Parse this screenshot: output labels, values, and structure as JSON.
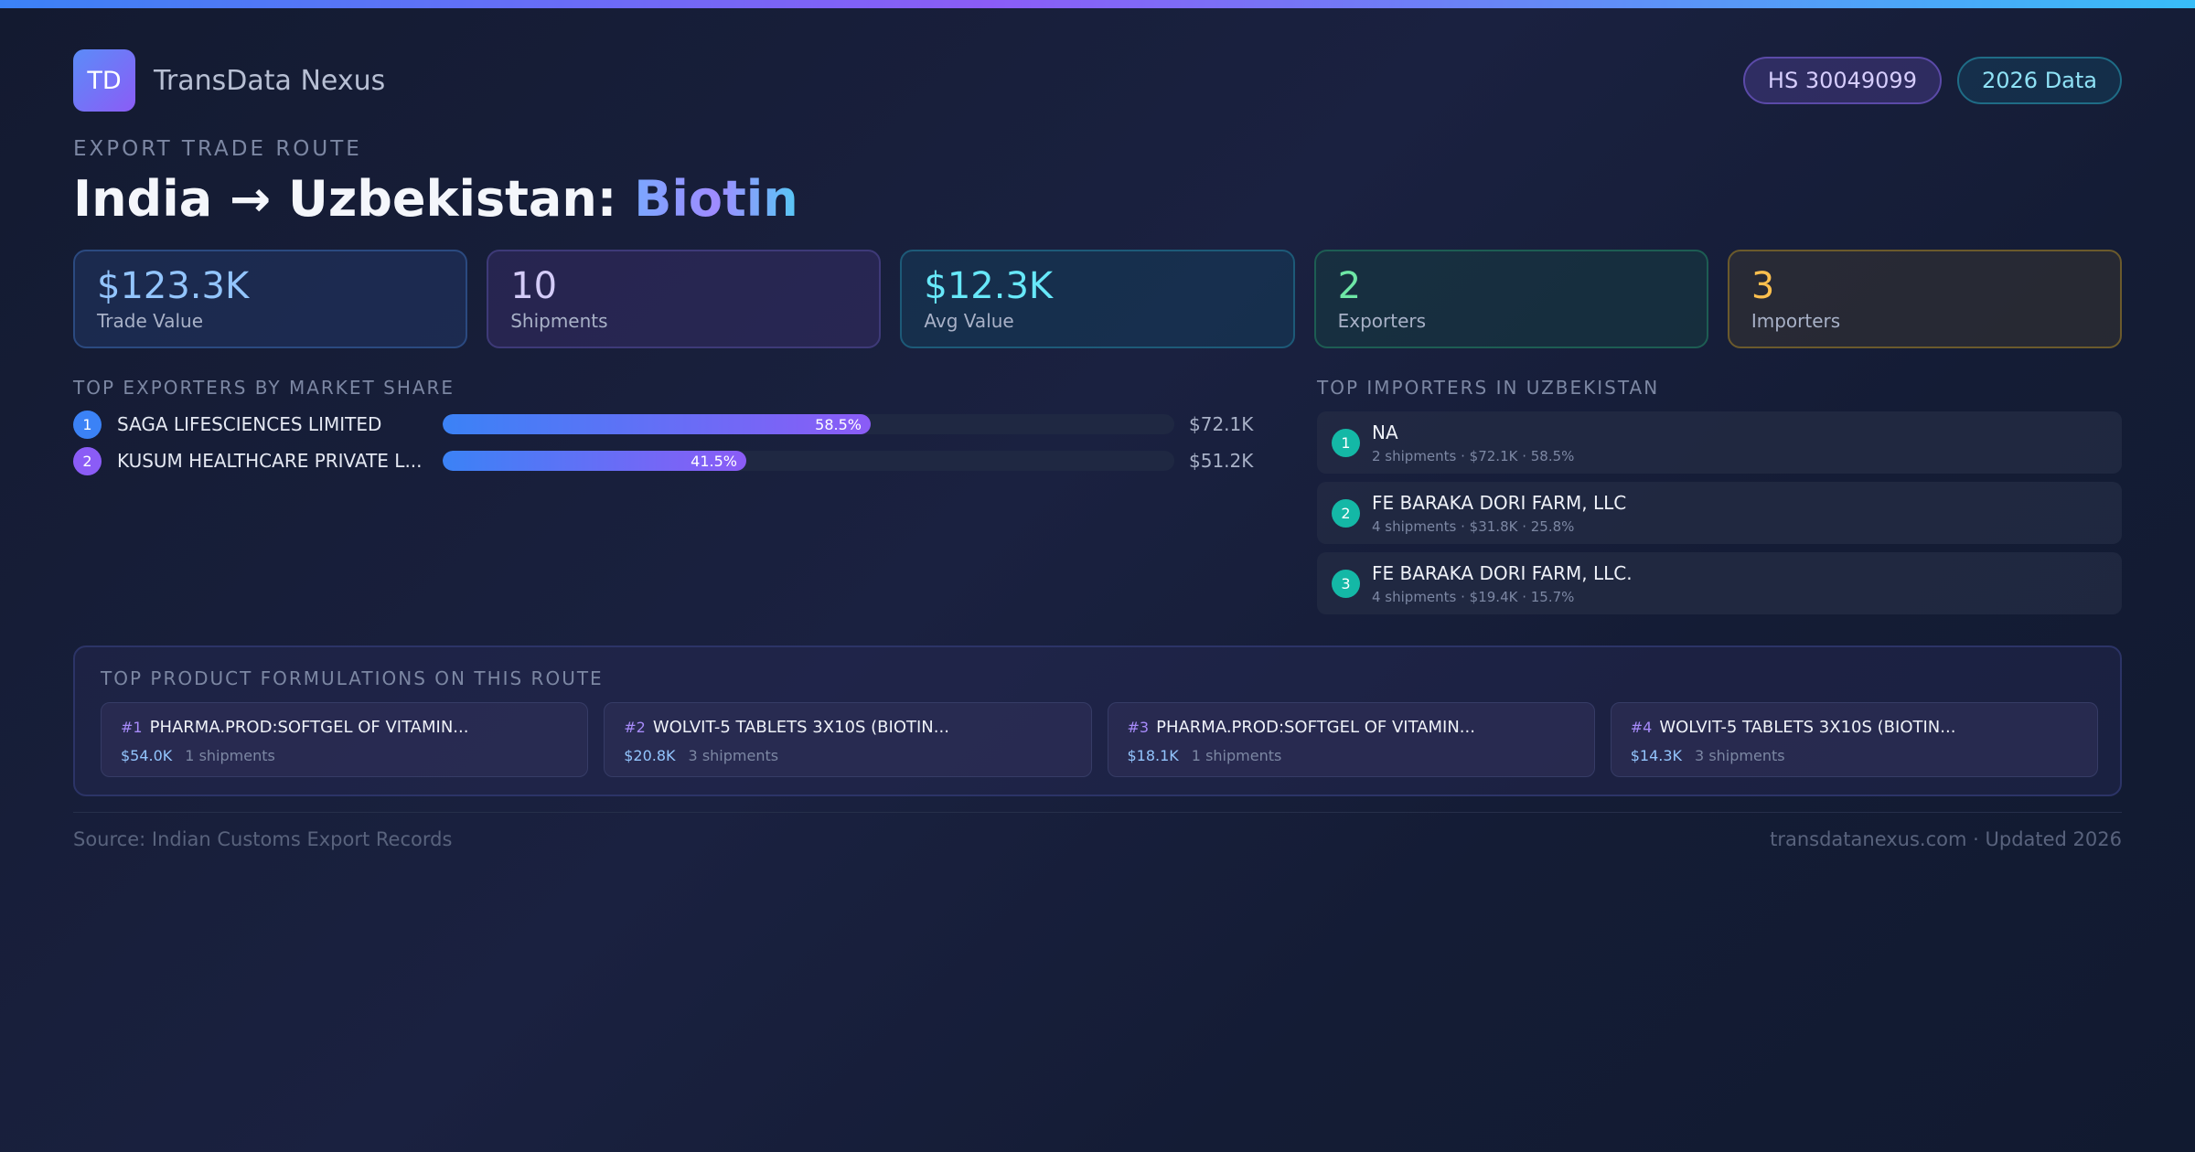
{
  "brand": {
    "logo_text": "TD",
    "name": "TransData Nexus"
  },
  "badges": {
    "hs_code": "HS 30049099",
    "year": "2026 Data"
  },
  "route": {
    "eyebrow": "EXPORT TRADE ROUTE",
    "title_prefix": "India → Uzbekistan: ",
    "product": "Biotin"
  },
  "stats": [
    {
      "value": "$123.3K",
      "label": "Trade Value"
    },
    {
      "value": "10",
      "label": "Shipments"
    },
    {
      "value": "$12.3K",
      "label": "Avg Value"
    },
    {
      "value": "2",
      "label": "Exporters"
    },
    {
      "value": "3",
      "label": "Importers"
    }
  ],
  "exporters": {
    "heading": "TOP EXPORTERS BY MARKET SHARE",
    "items": [
      {
        "rank": "1",
        "name": "SAGA LIFESCIENCES LIMITED",
        "share_label": "58.5%",
        "share": 58.5,
        "value": "$72.1K"
      },
      {
        "rank": "2",
        "name": "KUSUM HEALTHCARE PRIVATE L...",
        "share_label": "41.5%",
        "share": 41.5,
        "value": "$51.2K"
      }
    ]
  },
  "importers": {
    "heading": "TOP IMPORTERS IN UZBEKISTAN",
    "items": [
      {
        "rank": "1",
        "name": "NA",
        "meta": "2 shipments · $72.1K · 58.5%"
      },
      {
        "rank": "2",
        "name": "FE BARAKA DORI FARM, LLC",
        "meta": "4 shipments · $31.8K · 25.8%"
      },
      {
        "rank": "3",
        "name": "FE BARAKA DORI FARM, LLC.",
        "meta": "4 shipments · $19.4K · 15.7%"
      }
    ]
  },
  "products": {
    "heading": "TOP PRODUCT FORMULATIONS ON THIS ROUTE",
    "items": [
      {
        "num": "#1",
        "name": "PHARMA.PROD:SOFTGEL OF VITAMIN...",
        "value": "$54.0K",
        "shipments": "1 shipments"
      },
      {
        "num": "#2",
        "name": "WOLVIT-5 TABLETS 3X10S (BIOTIN...",
        "value": "$20.8K",
        "shipments": "3 shipments"
      },
      {
        "num": "#3",
        "name": "PHARMA.PROD:SOFTGEL OF VITAMIN...",
        "value": "$18.1K",
        "shipments": "1 shipments"
      },
      {
        "num": "#4",
        "name": "WOLVIT-5 TABLETS 3X10S (BIOTIN...",
        "value": "$14.3K",
        "shipments": "3 shipments"
      }
    ]
  },
  "footer": {
    "source": "Source: Indian Customs Export Records",
    "site": "transdatanexus.com · Updated 2026"
  },
  "colors": {
    "accent_blue": "#3b82f6",
    "accent_purple": "#8b5cf6",
    "accent_teal": "#14b8a6",
    "background": "#141b33"
  }
}
